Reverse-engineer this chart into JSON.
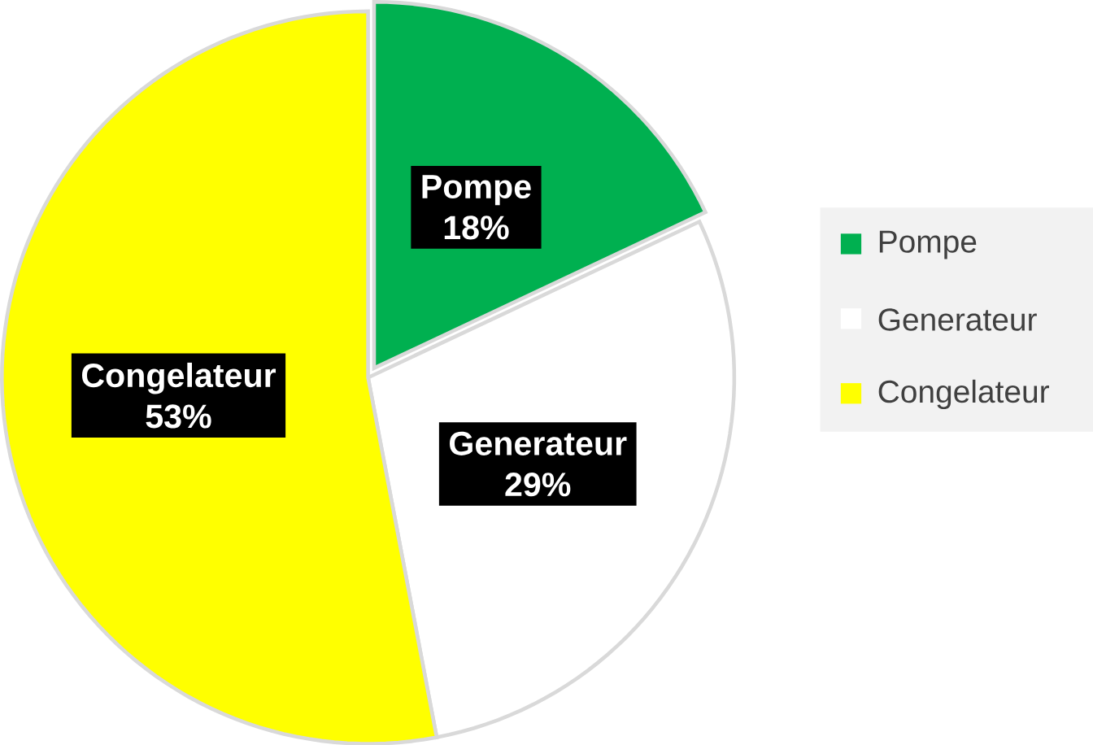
{
  "chart_data": {
    "type": "pie",
    "categories": [
      "Pompe",
      "Generateur",
      "Congelateur"
    ],
    "values": [
      18,
      29,
      53
    ],
    "colors": [
      "#00b050",
      "#ffffff",
      "#ffff00"
    ],
    "value_labels": [
      "18%",
      "29%",
      "53%"
    ],
    "legend": "right"
  }
}
